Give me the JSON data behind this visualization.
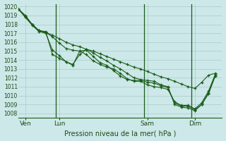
{
  "background_color": "#cde8e8",
  "grid_color": "#aacaca",
  "line_color": "#1a5c1a",
  "marker_color": "#1a5c1a",
  "title": "Pression niveau de la mer( hPa )",
  "ylim": [
    1007.5,
    1020.3
  ],
  "yticks": [
    1008,
    1009,
    1010,
    1011,
    1012,
    1013,
    1014,
    1015,
    1016,
    1017,
    1018,
    1019,
    1020
  ],
  "xtick_labels": [
    "Ven",
    "Lun",
    "Sam",
    "Dim"
  ],
  "xtick_positions": [
    1,
    6,
    19,
    26
  ],
  "vline_positions": [
    5.5,
    18.5,
    25.5
  ],
  "total_points": 30,
  "xlim": [
    0,
    30
  ],
  "series": [
    [
      1019.7,
      1019.0,
      1018.0,
      1017.3,
      1017.1,
      1016.8,
      1016.4,
      1016.0,
      1015.7,
      1015.5,
      1015.2,
      1015.0,
      1014.7,
      1014.4,
      1014.1,
      1013.8,
      1013.5,
      1013.2,
      1013.0,
      1012.7,
      1012.4,
      1012.1,
      1011.9,
      1011.6,
      1011.3,
      1011.0,
      1010.8,
      1011.5,
      1012.3,
      1012.5
    ],
    [
      1019.7,
      1018.8,
      1018.0,
      1017.3,
      1017.1,
      1016.6,
      1015.9,
      1015.3,
      1015.1,
      1015.0,
      1014.6,
      1013.9,
      1013.5,
      1013.2,
      1013.0,
      1012.5,
      1011.9,
      1011.6,
      1011.6,
      1011.2,
      1011.0,
      1010.9,
      1010.7,
      1009.3,
      1008.9,
      1008.9,
      1008.5,
      1009.2,
      1010.5,
      1012.4
    ],
    [
      1019.7,
      1018.8,
      1017.9,
      1017.2,
      1017.0,
      1015.1,
      1014.5,
      1013.8,
      1013.4,
      1015.0,
      1015.1,
      1014.4,
      1013.7,
      1013.4,
      1012.8,
      1012.2,
      1011.8,
      1011.7,
      1011.7,
      1011.5,
      1011.4,
      1011.1,
      1010.9,
      1009.2,
      1008.8,
      1008.8,
      1008.4,
      1009.0,
      1010.3,
      1012.3
    ],
    [
      1019.7,
      1018.9,
      1018.0,
      1017.3,
      1017.2,
      1014.6,
      1014.2,
      1013.8,
      1013.5,
      1014.6,
      1015.2,
      1014.8,
      1014.3,
      1013.9,
      1013.4,
      1013.0,
      1012.5,
      1012.0,
      1011.8,
      1011.7,
      1011.6,
      1011.2,
      1011.0,
      1009.0,
      1008.7,
      1008.6,
      1008.3,
      1009.0,
      1010.2,
      1012.2
    ]
  ]
}
